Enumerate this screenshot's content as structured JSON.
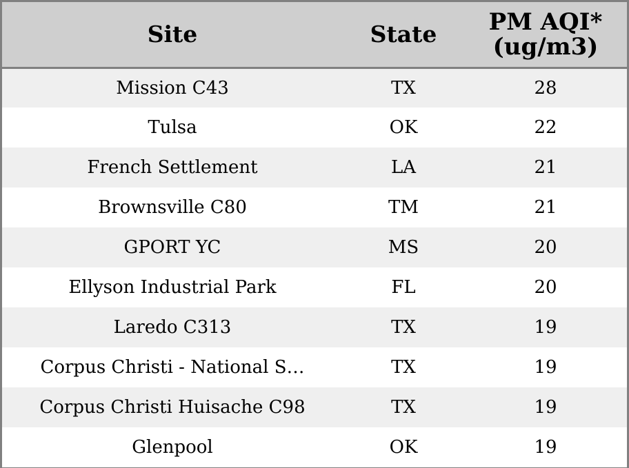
{
  "table": {
    "headers": {
      "site": "Site",
      "state": "State",
      "aqi_line1": "PM AQI*",
      "aqi_line2": "(ug/m3)"
    },
    "rows": [
      {
        "site": "Mission C43",
        "state": "TX",
        "aqi": "28"
      },
      {
        "site": "Tulsa",
        "state": "OK",
        "aqi": "22"
      },
      {
        "site": "French Settlement",
        "state": "LA",
        "aqi": "21"
      },
      {
        "site": "Brownsville C80",
        "state": "TM",
        "aqi": "21"
      },
      {
        "site": "GPORT YC",
        "state": "MS",
        "aqi": "20"
      },
      {
        "site": "Ellyson Industrial Park",
        "state": "FL",
        "aqi": "20"
      },
      {
        "site": "Laredo C313",
        "state": "TX",
        "aqi": "19"
      },
      {
        "site": "Corpus Christi - National S…",
        "state": "TX",
        "aqi": "19"
      },
      {
        "site": "Corpus Christi Huisache C98",
        "state": "TX",
        "aqi": "19"
      },
      {
        "site": "Glenpool",
        "state": "OK",
        "aqi": "19"
      }
    ]
  },
  "colors": {
    "header_background": "#cfcfcf",
    "row_stripe": "#efefef",
    "row_plain": "#ffffff",
    "border": "#808080"
  }
}
